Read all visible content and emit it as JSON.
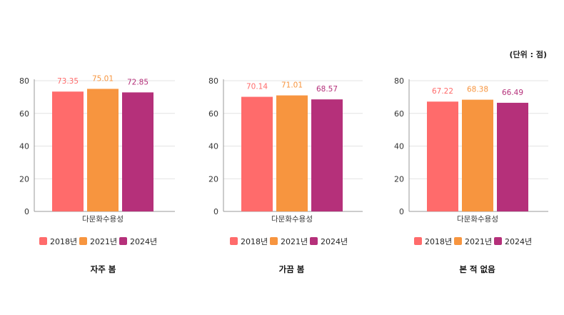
{
  "unit_label": "(단위 : 점)",
  "colors": [
    "#FF6B6B",
    "#F7953F",
    "#B5307A"
  ],
  "legend": [
    "2018년",
    "2021년",
    "2024년"
  ],
  "chart_data": [
    {
      "type": "bar",
      "title": "자주 봄",
      "categories": [
        "다문화수용성"
      ],
      "series": [
        {
          "name": "2018년",
          "values": [
            73.35
          ]
        },
        {
          "name": "2021년",
          "values": [
            75.01
          ]
        },
        {
          "name": "2024년",
          "values": [
            72.85
          ]
        }
      ],
      "value_labels": [
        "73.35",
        "75.01",
        "72.85"
      ],
      "yticks": [
        "0",
        "20",
        "40",
        "60",
        "80"
      ],
      "ylim": [
        0,
        80
      ],
      "grid": true,
      "legend_position": "bottom"
    },
    {
      "type": "bar",
      "title": "가끔 봄",
      "categories": [
        "다문화수용성"
      ],
      "series": [
        {
          "name": "2018년",
          "values": [
            70.14
          ]
        },
        {
          "name": "2021년",
          "values": [
            71.01
          ]
        },
        {
          "name": "2024년",
          "values": [
            68.57
          ]
        }
      ],
      "value_labels": [
        "70.14",
        "71.01",
        "68.57"
      ],
      "yticks": [
        "0",
        "20",
        "40",
        "60",
        "80"
      ],
      "ylim": [
        0,
        80
      ],
      "grid": true,
      "legend_position": "bottom"
    },
    {
      "type": "bar",
      "title": "본 적 없음",
      "categories": [
        "다문화수용성"
      ],
      "series": [
        {
          "name": "2018년",
          "values": [
            67.22
          ]
        },
        {
          "name": "2021년",
          "values": [
            68.38
          ]
        },
        {
          "name": "2024년",
          "values": [
            66.49
          ]
        }
      ],
      "value_labels": [
        "67.22",
        "68.38",
        "66.49"
      ],
      "yticks": [
        "0",
        "20",
        "40",
        "60",
        "80"
      ],
      "ylim": [
        0,
        80
      ],
      "grid": true,
      "legend_position": "bottom"
    }
  ]
}
